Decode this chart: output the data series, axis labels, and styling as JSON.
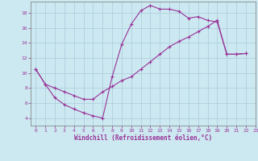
{
  "xlabel": "Windchill (Refroidissement éolien,°C)",
  "line1_x": [
    0,
    1,
    2,
    3,
    4,
    5,
    6,
    7,
    8,
    9,
    10,
    11,
    12,
    13,
    14,
    15,
    16,
    17,
    18,
    19,
    20,
    21,
    22
  ],
  "line1_y": [
    10.5,
    8.5,
    6.7,
    5.8,
    5.2,
    4.7,
    4.3,
    4.0,
    9.5,
    13.8,
    16.5,
    18.3,
    19.0,
    18.5,
    18.5,
    18.2,
    17.3,
    17.5,
    17.0,
    16.8,
    12.5,
    12.5,
    12.6
  ],
  "line2_x": [
    0,
    1,
    2,
    3,
    4,
    5,
    6,
    7,
    8,
    9,
    10,
    11,
    12,
    13,
    14,
    15,
    16,
    17,
    18,
    19,
    20,
    21,
    22
  ],
  "line2_y": [
    10.5,
    8.5,
    8.0,
    7.5,
    7.0,
    6.5,
    6.5,
    7.5,
    8.2,
    9.0,
    9.5,
    10.5,
    11.5,
    12.5,
    13.5,
    14.2,
    14.8,
    15.5,
    16.2,
    17.0,
    12.5,
    12.5,
    12.6
  ],
  "line_color": "#993399",
  "bg_color": "#cce8f0",
  "grid_color": "#aaccdd",
  "xlim": [
    -0.5,
    23
  ],
  "ylim": [
    3.0,
    19.5
  ],
  "xticks": [
    0,
    1,
    2,
    3,
    4,
    5,
    6,
    7,
    8,
    9,
    10,
    11,
    12,
    13,
    14,
    15,
    16,
    17,
    18,
    19,
    20,
    21,
    22,
    23
  ],
  "yticks": [
    4,
    6,
    8,
    10,
    12,
    14,
    16,
    18
  ],
  "tick_fontsize": 4.5,
  "xlabel_fontsize": 5.5
}
